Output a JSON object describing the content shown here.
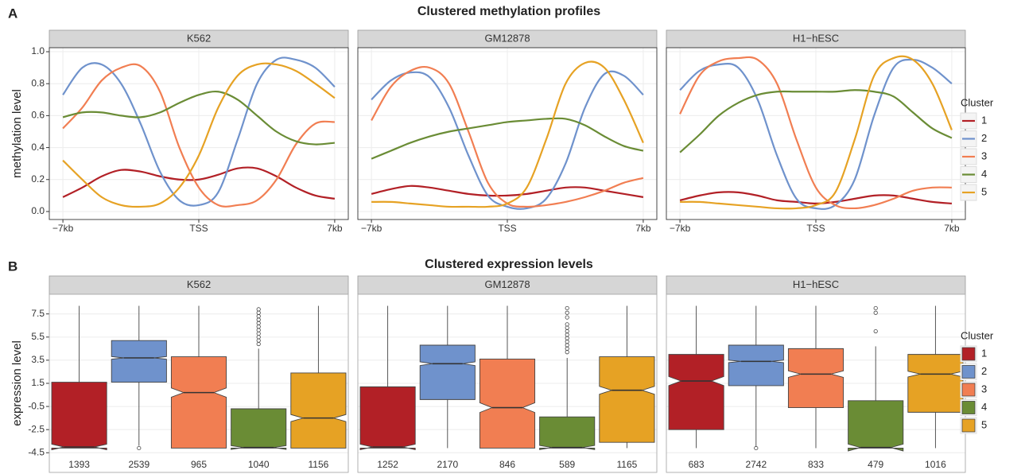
{
  "chart_data": [
    {
      "type": "line",
      "label": "A",
      "title": "Clustered methylation profiles",
      "y_label": "methylation level",
      "legend_title": "Cluster",
      "xlim": [
        -7700,
        7700
      ],
      "xticks": [
        {
          "value": -7000,
          "label": "−7kb"
        },
        {
          "value": 0,
          "label": "TSS"
        },
        {
          "value": 7000,
          "label": "7kb"
        }
      ],
      "ylim": [
        -0.05,
        1.025
      ],
      "yticks": [
        {
          "value": 0,
          "label": "0.0"
        },
        0.2,
        0.4,
        0.6,
        0.8,
        {
          "value": 1,
          "label": "1.0"
        }
      ],
      "grid": true,
      "x": [
        -7000,
        -6000,
        -5000,
        -4000,
        -3000,
        -2000,
        -1000,
        0,
        1000,
        2000,
        3000,
        4000,
        5000,
        6000,
        7000
      ],
      "facets": [
        {
          "name": "K562",
          "series": [
            {
              "name": "1",
              "color": "#b22026",
              "values": [
                0.09,
                0.15,
                0.22,
                0.26,
                0.25,
                0.22,
                0.2,
                0.2,
                0.23,
                0.27,
                0.27,
                0.22,
                0.15,
                0.1,
                0.08
              ]
            },
            {
              "name": "2",
              "color": "#6f92cc",
              "values": [
                0.73,
                0.9,
                0.92,
                0.8,
                0.55,
                0.25,
                0.07,
                0.04,
                0.12,
                0.45,
                0.8,
                0.95,
                0.95,
                0.9,
                0.78
              ]
            },
            {
              "name": "3",
              "color": "#f17e52",
              "values": [
                0.52,
                0.65,
                0.82,
                0.9,
                0.91,
                0.75,
                0.4,
                0.15,
                0.04,
                0.04,
                0.07,
                0.2,
                0.42,
                0.55,
                0.56
              ]
            },
            {
              "name": "4",
              "color": "#6a8c35",
              "values": [
                0.59,
                0.62,
                0.62,
                0.6,
                0.59,
                0.62,
                0.68,
                0.73,
                0.75,
                0.7,
                0.6,
                0.5,
                0.44,
                0.42,
                0.43
              ]
            },
            {
              "name": "5",
              "color": "#e6a224",
              "values": [
                0.32,
                0.2,
                0.09,
                0.04,
                0.03,
                0.05,
                0.15,
                0.35,
                0.65,
                0.85,
                0.92,
                0.92,
                0.88,
                0.8,
                0.71
              ]
            }
          ]
        },
        {
          "name": "GM12878",
          "series": [
            {
              "name": "1",
              "color": "#b22026",
              "values": [
                0.11,
                0.14,
                0.16,
                0.15,
                0.13,
                0.11,
                0.1,
                0.1,
                0.11,
                0.13,
                0.15,
                0.15,
                0.13,
                0.11,
                0.09
              ]
            },
            {
              "name": "2",
              "color": "#6f92cc",
              "values": [
                0.7,
                0.82,
                0.87,
                0.84,
                0.65,
                0.35,
                0.1,
                0.03,
                0.02,
                0.08,
                0.3,
                0.65,
                0.86,
                0.85,
                0.73
              ]
            },
            {
              "name": "3",
              "color": "#f17e52",
              "values": [
                0.57,
                0.78,
                0.88,
                0.9,
                0.8,
                0.5,
                0.18,
                0.05,
                0.03,
                0.04,
                0.06,
                0.09,
                0.13,
                0.18,
                0.21
              ]
            },
            {
              "name": "4",
              "color": "#6a8c35",
              "values": [
                0.33,
                0.38,
                0.43,
                0.47,
                0.5,
                0.52,
                0.54,
                0.56,
                0.57,
                0.58,
                0.58,
                0.54,
                0.47,
                0.41,
                0.38
              ]
            },
            {
              "name": "5",
              "color": "#e6a224",
              "values": [
                0.06,
                0.06,
                0.05,
                0.04,
                0.03,
                0.03,
                0.03,
                0.05,
                0.15,
                0.45,
                0.8,
                0.93,
                0.9,
                0.7,
                0.43
              ]
            }
          ]
        },
        {
          "name": "H1−hESC",
          "series": [
            {
              "name": "1",
              "color": "#b22026",
              "values": [
                0.07,
                0.1,
                0.12,
                0.12,
                0.1,
                0.07,
                0.06,
                0.05,
                0.06,
                0.08,
                0.1,
                0.1,
                0.08,
                0.06,
                0.05
              ]
            },
            {
              "name": "2",
              "color": "#6f92cc",
              "values": [
                0.76,
                0.88,
                0.92,
                0.9,
                0.7,
                0.35,
                0.08,
                0.02,
                0.04,
                0.2,
                0.6,
                0.9,
                0.95,
                0.9,
                0.8
              ]
            },
            {
              "name": "3",
              "color": "#f17e52",
              "values": [
                0.61,
                0.85,
                0.94,
                0.96,
                0.95,
                0.8,
                0.45,
                0.15,
                0.04,
                0.02,
                0.04,
                0.08,
                0.13,
                0.15,
                0.15
              ]
            },
            {
              "name": "4",
              "color": "#6a8c35",
              "values": [
                0.37,
                0.48,
                0.6,
                0.68,
                0.73,
                0.75,
                0.75,
                0.75,
                0.75,
                0.76,
                0.75,
                0.72,
                0.62,
                0.52,
                0.46
              ]
            },
            {
              "name": "5",
              "color": "#e6a224",
              "values": [
                0.06,
                0.06,
                0.05,
                0.04,
                0.03,
                0.02,
                0.02,
                0.04,
                0.12,
                0.45,
                0.85,
                0.96,
                0.95,
                0.8,
                0.51
              ]
            }
          ]
        }
      ]
    },
    {
      "type": "box",
      "label": "B",
      "title": "Clustered expression levels",
      "y_label": "expression level",
      "legend_title": "Cluster",
      "ylim": [
        -6.2,
        9.2
      ],
      "yticks": [
        -4.5,
        -2.5,
        -0.5,
        1.5,
        3.5,
        5.5,
        7.5
      ],
      "grid": true,
      "facets": [
        {
          "name": "K562",
          "boxes": [
            {
              "name": "1",
              "color": "#b22026",
              "min": -4.1,
              "q1": -4.1,
              "median": -4.0,
              "q3": 1.6,
              "max": 8.2,
              "outliers": [],
              "n": 1393
            },
            {
              "name": "2",
              "color": "#6f92cc",
              "min": -3.9,
              "q1": 1.6,
              "median": 3.7,
              "q3": 5.2,
              "max": 8.2,
              "outliers": [
                -4.1
              ],
              "n": 2539
            },
            {
              "name": "3",
              "color": "#f17e52",
              "min": -4.1,
              "q1": -4.1,
              "median": 0.7,
              "q3": 3.8,
              "max": 8.2,
              "outliers": [],
              "n": 965
            },
            {
              "name": "4",
              "color": "#6a8c35",
              "min": -4.1,
              "q1": -4.1,
              "median": -4.05,
              "q3": -0.7,
              "max": 4.5,
              "outliers": [
                4.9,
                5.2,
                5.5,
                5.8,
                6.1,
                6.4,
                6.7,
                7.0,
                7.3,
                7.6,
                7.9
              ],
              "n": 1040
            },
            {
              "name": "5",
              "color": "#e6a224",
              "min": -4.1,
              "q1": -4.1,
              "median": -1.5,
              "q3": 2.4,
              "max": 8.2,
              "outliers": [],
              "n": 1156
            }
          ]
        },
        {
          "name": "GM12878",
          "boxes": [
            {
              "name": "1",
              "color": "#b22026",
              "min": -4.1,
              "q1": -4.1,
              "median": -4.0,
              "q3": 1.2,
              "max": 8.2,
              "outliers": [],
              "n": 1252
            },
            {
              "name": "2",
              "color": "#6f92cc",
              "min": -4.1,
              "q1": 0.1,
              "median": 3.2,
              "q3": 4.8,
              "max": 8.2,
              "outliers": [],
              "n": 2170
            },
            {
              "name": "3",
              "color": "#f17e52",
              "min": -4.1,
              "q1": -4.1,
              "median": -0.6,
              "q3": 3.6,
              "max": 8.2,
              "outliers": [],
              "n": 846
            },
            {
              "name": "4",
              "color": "#6a8c35",
              "min": -4.1,
              "q1": -4.1,
              "median": -4.05,
              "q3": -1.4,
              "max": 3.7,
              "outliers": [
                4.2,
                4.5,
                4.8,
                5.1,
                5.4,
                5.7,
                6.0,
                6.3,
                6.6,
                7.2,
                7.6,
                8.0
              ],
              "n": 589
            },
            {
              "name": "5",
              "color": "#e6a224",
              "min": -4.1,
              "q1": -3.6,
              "median": 0.9,
              "q3": 3.8,
              "max": 8.2,
              "outliers": [],
              "n": 1165
            }
          ]
        },
        {
          "name": "H1−hESC",
          "boxes": [
            {
              "name": "1",
              "color": "#b22026",
              "min": -4.1,
              "q1": -2.5,
              "median": 1.7,
              "q3": 4.0,
              "max": 8.2,
              "outliers": [],
              "n": 683
            },
            {
              "name": "2",
              "color": "#6f92cc",
              "min": -4.0,
              "q1": 1.3,
              "median": 3.4,
              "q3": 4.8,
              "max": 8.2,
              "outliers": [
                -4.1
              ],
              "n": 2742
            },
            {
              "name": "3",
              "color": "#f17e52",
              "min": -4.1,
              "q1": -0.6,
              "median": 2.3,
              "q3": 4.5,
              "max": 8.2,
              "outliers": [],
              "n": 833
            },
            {
              "name": "4",
              "color": "#6a8c35",
              "min": -4.1,
              "q1": -4.1,
              "median": -4.05,
              "q3": 0.0,
              "max": 4.7,
              "outliers": [
                6.0,
                7.6,
                8.0
              ],
              "n": 479
            },
            {
              "name": "5",
              "color": "#e6a224",
              "min": -4.1,
              "q1": -1.0,
              "median": 2.3,
              "q3": 4.0,
              "max": 8.2,
              "outliers": [],
              "n": 1016
            }
          ]
        }
      ]
    }
  ]
}
